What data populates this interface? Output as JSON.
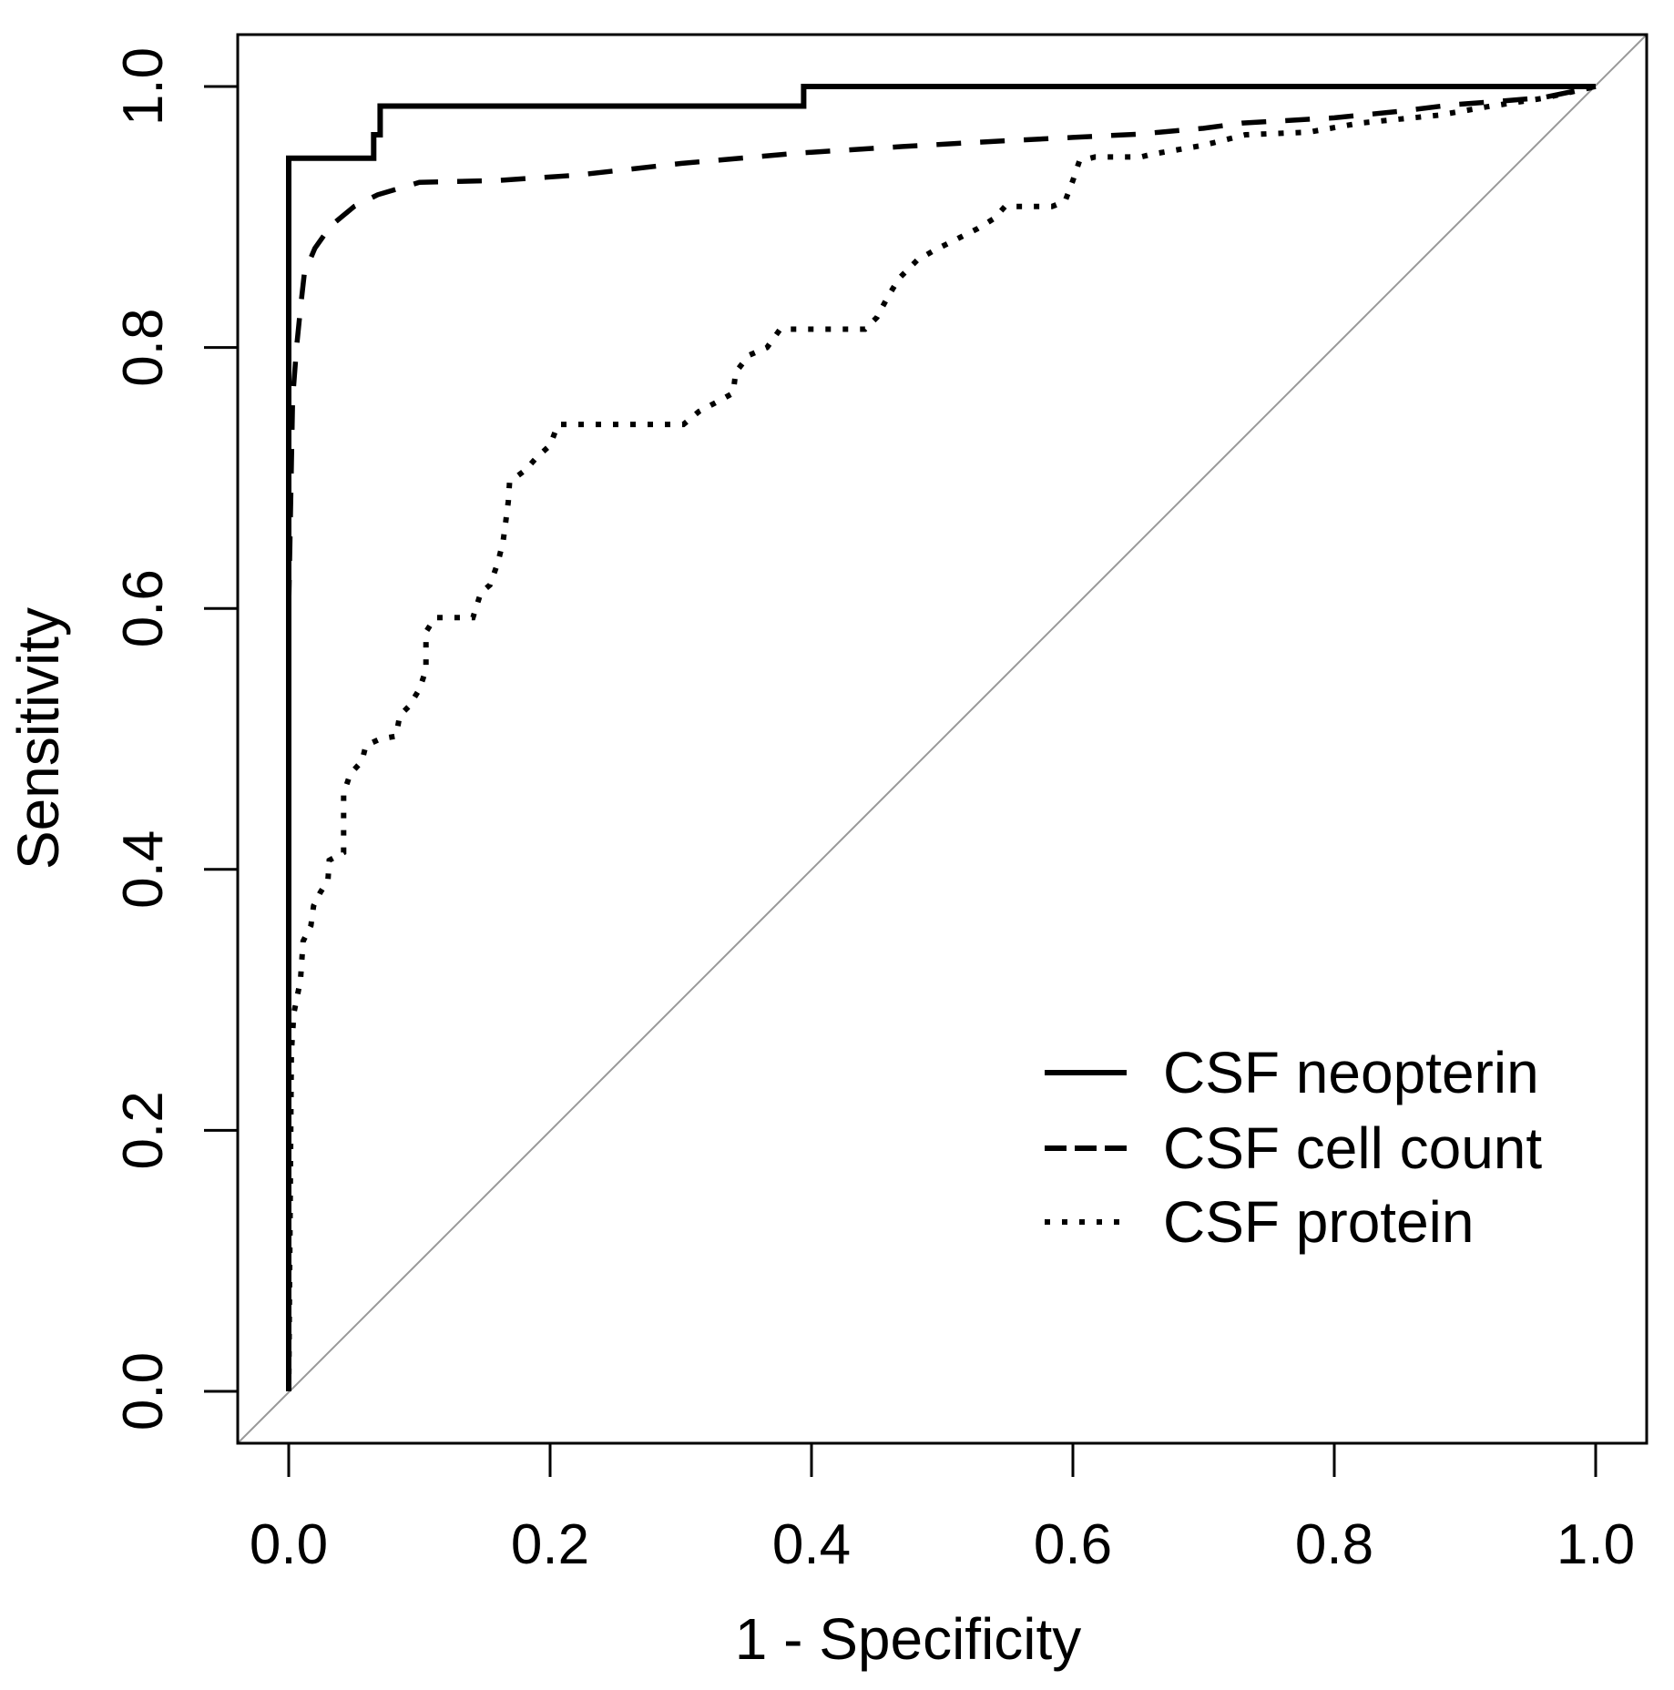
{
  "chart_data": {
    "type": "line",
    "subtype": "roc-curves",
    "title": "",
    "xlabel": "1 - Specificity",
    "ylabel": "Sensitivity",
    "xlim": [
      0,
      1
    ],
    "ylim": [
      0,
      1
    ],
    "grid": false,
    "background_color": "#ffffff",
    "axis_color": "#000000",
    "x_tick_values": [
      0.0,
      0.2,
      0.4,
      0.6,
      0.8,
      1.0
    ],
    "x_tick_labels": [
      "0.0",
      "0.2",
      "0.4",
      "0.6",
      "0.8",
      "1.0"
    ],
    "y_tick_values": [
      0.0,
      0.2,
      0.4,
      0.6,
      0.8,
      1.0
    ],
    "y_tick_labels": [
      "0.0",
      "0.2",
      "0.4",
      "0.6",
      "0.8",
      "1.0"
    ],
    "reference_line": {
      "name": "chance-diagonal",
      "from": [
        0,
        0
      ],
      "to": [
        1,
        1
      ],
      "color": "#999999"
    },
    "legend": {
      "position": "bottom-right",
      "boxed": false,
      "entries": [
        {
          "label": "CSF neopterin",
          "line_style": "solid"
        },
        {
          "label": "CSF cell count",
          "line_style": "dashed"
        },
        {
          "label": "CSF protein",
          "line_style": "dotted"
        }
      ]
    },
    "series": [
      {
        "name": "CSF neopterin",
        "line_style": "solid",
        "color": "#000000",
        "points": [
          [
            0,
            0
          ],
          [
            0,
            0.945
          ],
          [
            0.065,
            0.945
          ],
          [
            0.065,
            0.963
          ],
          [
            0.07,
            0.963
          ],
          [
            0.07,
            0.985
          ],
          [
            0.394,
            0.985
          ],
          [
            0.394,
            1
          ],
          [
            1,
            1
          ]
        ]
      },
      {
        "name": "CSF cell count",
        "line_style": "dashed",
        "color": "#000000",
        "points": [
          [
            0,
            0
          ],
          [
            0,
            0.6
          ],
          [
            0.003,
            0.76
          ],
          [
            0.006,
            0.8
          ],
          [
            0.009,
            0.83
          ],
          [
            0.012,
            0.857
          ],
          [
            0.02,
            0.876
          ],
          [
            0.032,
            0.893
          ],
          [
            0.05,
            0.908
          ],
          [
            0.068,
            0.917
          ],
          [
            0.1,
            0.9265
          ],
          [
            0.16,
            0.928
          ],
          [
            0.22,
            0.932
          ],
          [
            0.3,
            0.941
          ],
          [
            0.39,
            0.949
          ],
          [
            0.47,
            0.954
          ],
          [
            0.54,
            0.958
          ],
          [
            0.6,
            0.961
          ],
          [
            0.65,
            0.9635
          ],
          [
            0.7,
            0.968
          ],
          [
            0.73,
            0.972
          ],
          [
            0.8,
            0.976
          ],
          [
            0.85,
            0.981
          ],
          [
            0.89,
            0.986
          ],
          [
            0.93,
            0.989
          ],
          [
            0.96,
            0.9915
          ],
          [
            1,
            1
          ]
        ]
      },
      {
        "name": "CSF protein",
        "line_style": "dotted",
        "color": "#000000",
        "points": [
          [
            0,
            0
          ],
          [
            0.002,
            0.26
          ],
          [
            0.004,
            0.29
          ],
          [
            0.009,
            0.315
          ],
          [
            0.011,
            0.345
          ],
          [
            0.017,
            0.357
          ],
          [
            0.019,
            0.372
          ],
          [
            0.024,
            0.382
          ],
          [
            0.03,
            0.392
          ],
          [
            0.031,
            0.407
          ],
          [
            0.042,
            0.413
          ],
          [
            0.042,
            0.458
          ],
          [
            0.047,
            0.473
          ],
          [
            0.056,
            0.483
          ],
          [
            0.059,
            0.495
          ],
          [
            0.07,
            0.5
          ],
          [
            0.082,
            0.502
          ],
          [
            0.085,
            0.518
          ],
          [
            0.092,
            0.525
          ],
          [
            0.1,
            0.538
          ],
          [
            0.105,
            0.553
          ],
          [
            0.105,
            0.582
          ],
          [
            0.112,
            0.593
          ],
          [
            0.141,
            0.593
          ],
          [
            0.147,
            0.612
          ],
          [
            0.154,
            0.618
          ],
          [
            0.16,
            0.635
          ],
          [
            0.164,
            0.651
          ],
          [
            0.166,
            0.666
          ],
          [
            0.168,
            0.682
          ],
          [
            0.169,
            0.697
          ],
          [
            0.181,
            0.706
          ],
          [
            0.19,
            0.716
          ],
          [
            0.2,
            0.725
          ],
          [
            0.206,
            0.741
          ],
          [
            0.302,
            0.741
          ],
          [
            0.314,
            0.751
          ],
          [
            0.331,
            0.76
          ],
          [
            0.34,
            0.765
          ],
          [
            0.342,
            0.781
          ],
          [
            0.352,
            0.794
          ],
          [
            0.366,
            0.8
          ],
          [
            0.376,
            0.814
          ],
          [
            0.441,
            0.814
          ],
          [
            0.45,
            0.823
          ],
          [
            0.458,
            0.838
          ],
          [
            0.467,
            0.853
          ],
          [
            0.481,
            0.867
          ],
          [
            0.495,
            0.875
          ],
          [
            0.511,
            0.883
          ],
          [
            0.527,
            0.891
          ],
          [
            0.54,
            0.899
          ],
          [
            0.548,
            0.908
          ],
          [
            0.584,
            0.908
          ],
          [
            0.594,
            0.912
          ],
          [
            0.6,
            0.928
          ],
          [
            0.605,
            0.943
          ],
          [
            0.617,
            0.946
          ],
          [
            0.652,
            0.946
          ],
          [
            0.66,
            0.948
          ],
          [
            0.7,
            0.955
          ],
          [
            0.732,
            0.963
          ],
          [
            0.78,
            0.965
          ],
          [
            0.82,
            0.972
          ],
          [
            0.88,
            0.978
          ],
          [
            0.92,
            0.985
          ],
          [
            0.96,
            0.991
          ],
          [
            1,
            1
          ]
        ]
      }
    ]
  }
}
